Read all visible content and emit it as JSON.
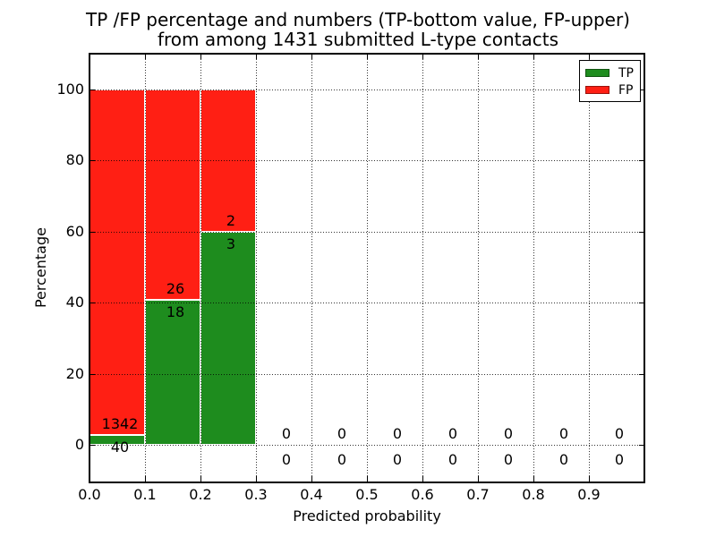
{
  "title": {
    "line1": "TP /FP percentage and numbers (TP-bottom value, FP-upper)",
    "line2": "from among 1431 submitted L-type contacts"
  },
  "axes": {
    "xlabel": "Predicted probability",
    "ylabel": "Percentage",
    "x_ticks": [
      "0.0",
      "0.1",
      "0.2",
      "0.3",
      "0.4",
      "0.5",
      "0.6",
      "0.7",
      "0.8",
      "0.9"
    ],
    "y_ticks": [
      "0",
      "20",
      "40",
      "60",
      "80",
      "100"
    ]
  },
  "legend": {
    "items": [
      {
        "label": "TP",
        "color": "#1e8c1e"
      },
      {
        "label": "FP",
        "color": "#ff1f14"
      }
    ]
  },
  "colors": {
    "tp": "#1e8c1e",
    "fp": "#ff1f14",
    "grid": "#000000",
    "bar_edge": "#ffffff",
    "background": "#ffffff"
  },
  "chart_data": {
    "type": "bar",
    "stacked": true,
    "unit": "percent",
    "title": "TP /FP percentage and numbers (TP-bottom value, FP-upper) from among 1431 submitted L-type contacts",
    "xlabel": "Predicted probability",
    "ylabel": "Percentage",
    "total_submitted": 1431,
    "bin_width": 0.1,
    "categories": [
      "0.0-0.1",
      "0.1-0.2",
      "0.2-0.3",
      "0.3-0.4",
      "0.4-0.5",
      "0.5-0.6",
      "0.6-0.7",
      "0.7-0.8",
      "0.8-0.9",
      "0.9-1.0"
    ],
    "series": [
      {
        "name": "TP",
        "color": "#1e8c1e",
        "counts": [
          40,
          18,
          3,
          0,
          0,
          0,
          0,
          0,
          0,
          0
        ],
        "pct": [
          2.89,
          40.91,
          60.0,
          0,
          0,
          0,
          0,
          0,
          0,
          0
        ]
      },
      {
        "name": "FP",
        "color": "#ff1f14",
        "counts": [
          1342,
          26,
          2,
          0,
          0,
          0,
          0,
          0,
          0,
          0
        ],
        "pct": [
          97.11,
          59.09,
          40.0,
          0,
          0,
          0,
          0,
          0,
          0,
          0
        ]
      }
    ],
    "x_tick_values": [
      0.0,
      0.1,
      0.2,
      0.3,
      0.4,
      0.5,
      0.6,
      0.7,
      0.8,
      0.9
    ],
    "y_tick_values": [
      0,
      20,
      40,
      60,
      80,
      100
    ],
    "xlim": [
      0.0,
      1.0
    ],
    "ylim": [
      -10.6,
      110.6
    ],
    "grid": true,
    "grid_style": "dotted",
    "legend_position": "upper right"
  }
}
